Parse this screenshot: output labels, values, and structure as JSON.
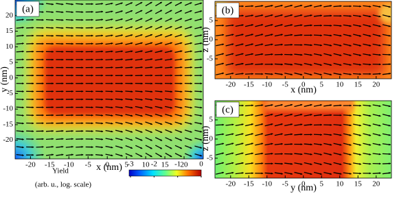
{
  "chart_data": [
    {
      "type": "heatmap",
      "label": "(a)",
      "xlabel": "x (nm)",
      "ylabel": "y (nm)",
      "xlim": [
        -24,
        25
      ],
      "ylim": [
        -26,
        25
      ],
      "xticks": [
        -20,
        -15,
        -10,
        -5,
        0,
        5,
        10,
        15,
        20
      ],
      "yticks": [
        -20,
        -15,
        -10,
        -5,
        0,
        5,
        10,
        15,
        20
      ]
    },
    {
      "type": "heatmap",
      "label": "(b)",
      "xlabel": "x (nm)",
      "ylabel": "z (nm)",
      "xlim": [
        -24.3,
        24.2
      ],
      "ylim": [
        -10.2,
        10
      ],
      "xticks": [
        -20,
        -15,
        -10,
        -5,
        0,
        5,
        10,
        15,
        20
      ],
      "yticks": [
        -5,
        0,
        5
      ]
    },
    {
      "type": "heatmap",
      "label": "(c)",
      "xlabel": "y (nm)",
      "ylabel": "z (nm)",
      "xlim": [
        -24.3,
        24.2
      ],
      "ylim": [
        -10.2,
        10
      ],
      "xticks": [
        -20,
        -15,
        -10,
        -5,
        0,
        5,
        10,
        15,
        20
      ],
      "yticks": [
        -5,
        0,
        5
      ]
    }
  ],
  "colorbar": {
    "title": "Yield",
    "label": "(arb. u., log. scale)",
    "lim": [
      -3,
      0
    ],
    "ticks": [
      -3,
      -2,
      -1,
      0
    ]
  }
}
